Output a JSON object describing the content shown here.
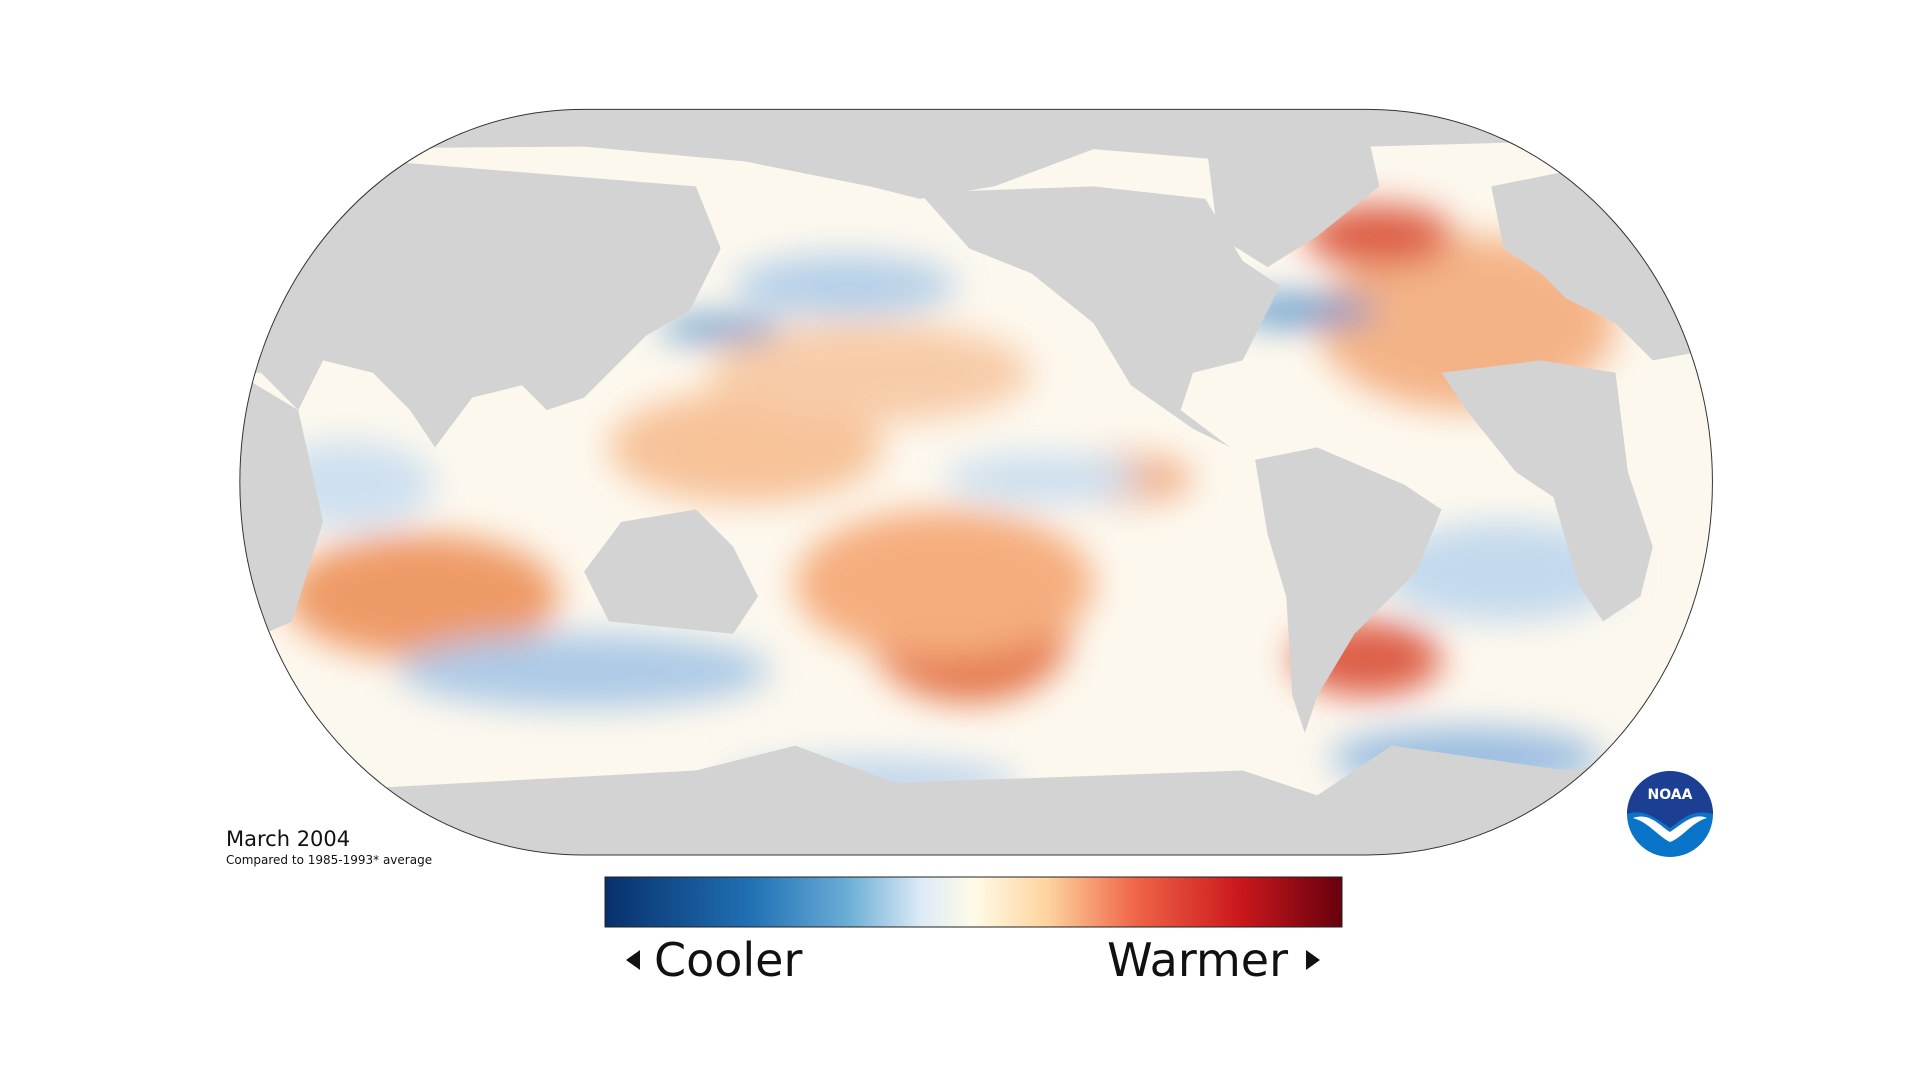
{
  "map": {
    "date": "March 2004",
    "caption": "Compared to 1985-1993* average",
    "legend": {
      "low_label": "Cooler",
      "high_label": "Warmer"
    },
    "logo": "NOAA"
  }
}
